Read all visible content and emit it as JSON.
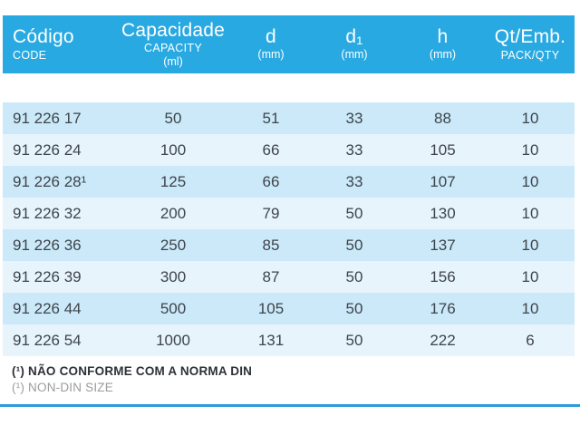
{
  "colors": {
    "header_bg": "#29a9e1",
    "header_text": "#ffffff",
    "row_dark": "#cbe9f8",
    "row_light": "#e7f4fc",
    "cell_text": "#3e444c",
    "footnote_dark": "#2e3138",
    "footnote_gray": "#9c9c9e",
    "rule_blue": "#2b9cd8",
    "page_bg": "#ffffff"
  },
  "table": {
    "columns": [
      {
        "label": "Código",
        "sublabel": "CODE",
        "unit": ""
      },
      {
        "label": "Capacidade",
        "sublabel": "CAPACITY",
        "unit": "(ml)"
      },
      {
        "label": "d",
        "sublabel": "",
        "unit": "(mm)"
      },
      {
        "label": "d₁",
        "sublabel": "",
        "unit": "(mm)"
      },
      {
        "label": "h",
        "sublabel": "",
        "unit": "(mm)"
      },
      {
        "label": "Qt/Emb.",
        "sublabel": "PACK/QTY",
        "unit": ""
      }
    ],
    "rows": [
      [
        "91 226 17",
        "50",
        "51",
        "33",
        "88",
        "10"
      ],
      [
        "91 226 24",
        "100",
        "66",
        "33",
        "105",
        "10"
      ],
      [
        "91 226 28¹",
        "125",
        "66",
        "33",
        "107",
        "10"
      ],
      [
        "91 226 32",
        "200",
        "79",
        "50",
        "130",
        "10"
      ],
      [
        "91 226 36",
        "250",
        "85",
        "50",
        "137",
        "10"
      ],
      [
        "91 226 39",
        "300",
        "87",
        "50",
        "156",
        "10"
      ],
      [
        "91 226 44",
        "500",
        "105",
        "50",
        "176",
        "10"
      ],
      [
        "91 226 54",
        "1000",
        "131",
        "50",
        "222",
        "6"
      ]
    ]
  },
  "footnotes": {
    "pt": "(¹) NÃO CONFORME COM A NORMA DIN",
    "en": "(¹) NON-DIN SIZE"
  }
}
